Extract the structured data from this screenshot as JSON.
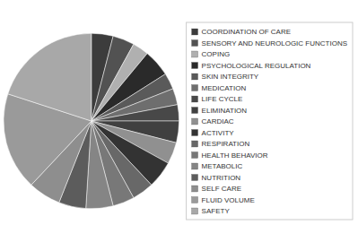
{
  "chart_data": {
    "type": "pie",
    "labels": [
      "COORDINATION OF CARE",
      "SENSORY AND NEUROLOGIC FUNCTIONS",
      "COPING",
      "PSYCHOLOGICAL REGULATION",
      "SKIN INTEGRITY",
      "MEDICATION",
      "LIFE CYCLE",
      "ELIMINATION",
      "CARDIAC",
      "ACTIVITY",
      "RESPIRATION",
      "HEALTH BEHAVIOR",
      "METABOLIC",
      "NUTRITION",
      "SELF CARE",
      "FLUID VOLUME",
      "SAFETY"
    ],
    "values": [
      4,
      4,
      3,
      5,
      3,
      3,
      3,
      4,
      4,
      5,
      4,
      4,
      5,
      5,
      6,
      18,
      20
    ],
    "colors": [
      "#3c3c3c",
      "#525252",
      "#b0b0b0",
      "#2a2a2a",
      "#5a5a5a",
      "#6e6e6e",
      "#484848",
      "#404040",
      "#909090",
      "#333333",
      "#686868",
      "#787878",
      "#858585",
      "#5c5c5c",
      "#8e8e8e",
      "#9a9a9a",
      "#a8a8a8"
    ],
    "legend": "right"
  }
}
